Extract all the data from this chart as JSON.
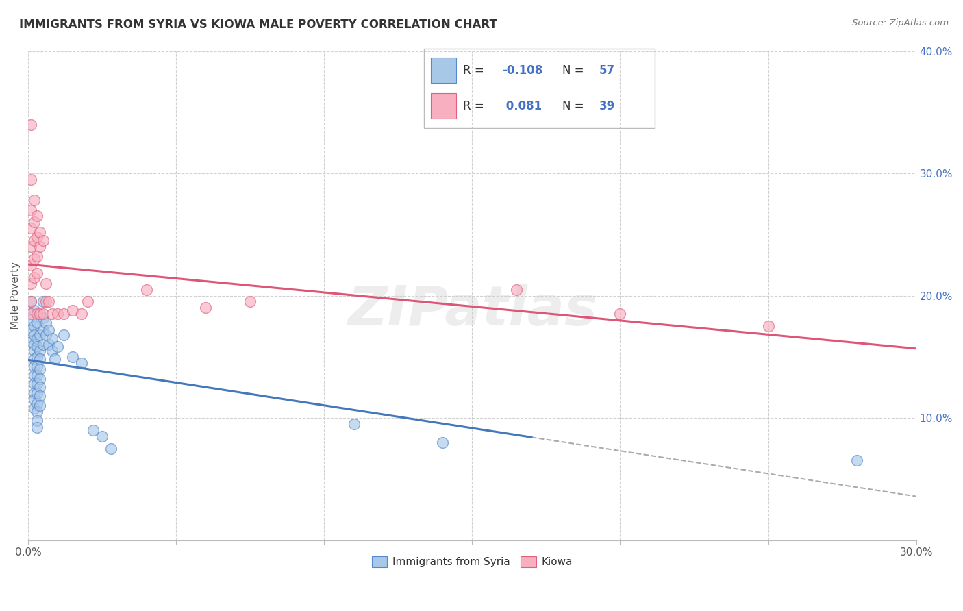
{
  "title": "IMMIGRANTS FROM SYRIA VS KIOWA MALE POVERTY CORRELATION CHART",
  "source": "Source: ZipAtlas.com",
  "ylabel": "Male Poverty",
  "xlim": [
    0,
    0.3
  ],
  "ylim": [
    0,
    0.4
  ],
  "legend_labels": [
    "Immigrants from Syria",
    "Kiowa"
  ],
  "legend_R_blue": "-0.108",
  "legend_R_pink": "0.081",
  "legend_N_blue": "57",
  "legend_N_pink": "39",
  "blue_fill": "#a8c8e8",
  "blue_edge": "#5588cc",
  "pink_fill": "#f8b0c0",
  "pink_edge": "#e06080",
  "blue_line": "#4477bb",
  "pink_line": "#dd5577",
  "dash_line": "#aaaaaa",
  "watermark": "ZIPatlas",
  "blue_scatter": [
    [
      0.001,
      0.195
    ],
    [
      0.001,
      0.18
    ],
    [
      0.001,
      0.172
    ],
    [
      0.001,
      0.162
    ],
    [
      0.002,
      0.188
    ],
    [
      0.002,
      0.175
    ],
    [
      0.002,
      0.168
    ],
    [
      0.002,
      0.16
    ],
    [
      0.002,
      0.155
    ],
    [
      0.002,
      0.148
    ],
    [
      0.002,
      0.142
    ],
    [
      0.002,
      0.135
    ],
    [
      0.002,
      0.128
    ],
    [
      0.002,
      0.12
    ],
    [
      0.002,
      0.115
    ],
    [
      0.002,
      0.108
    ],
    [
      0.003,
      0.178
    ],
    [
      0.003,
      0.165
    ],
    [
      0.003,
      0.158
    ],
    [
      0.003,
      0.15
    ],
    [
      0.003,
      0.142
    ],
    [
      0.003,
      0.135
    ],
    [
      0.003,
      0.128
    ],
    [
      0.003,
      0.12
    ],
    [
      0.003,
      0.112
    ],
    [
      0.003,
      0.105
    ],
    [
      0.003,
      0.098
    ],
    [
      0.003,
      0.092
    ],
    [
      0.004,
      0.168
    ],
    [
      0.004,
      0.155
    ],
    [
      0.004,
      0.148
    ],
    [
      0.004,
      0.14
    ],
    [
      0.004,
      0.132
    ],
    [
      0.004,
      0.125
    ],
    [
      0.004,
      0.118
    ],
    [
      0.004,
      0.11
    ],
    [
      0.005,
      0.195
    ],
    [
      0.005,
      0.182
    ],
    [
      0.005,
      0.172
    ],
    [
      0.005,
      0.16
    ],
    [
      0.006,
      0.178
    ],
    [
      0.006,
      0.168
    ],
    [
      0.007,
      0.172
    ],
    [
      0.007,
      0.16
    ],
    [
      0.008,
      0.165
    ],
    [
      0.008,
      0.155
    ],
    [
      0.009,
      0.148
    ],
    [
      0.01,
      0.158
    ],
    [
      0.012,
      0.168
    ],
    [
      0.015,
      0.15
    ],
    [
      0.018,
      0.145
    ],
    [
      0.022,
      0.09
    ],
    [
      0.025,
      0.085
    ],
    [
      0.028,
      0.075
    ],
    [
      0.11,
      0.095
    ],
    [
      0.14,
      0.08
    ],
    [
      0.28,
      0.065
    ]
  ],
  "pink_scatter": [
    [
      0.001,
      0.34
    ],
    [
      0.001,
      0.295
    ],
    [
      0.001,
      0.27
    ],
    [
      0.001,
      0.255
    ],
    [
      0.001,
      0.24
    ],
    [
      0.001,
      0.225
    ],
    [
      0.001,
      0.21
    ],
    [
      0.001,
      0.195
    ],
    [
      0.001,
      0.185
    ],
    [
      0.002,
      0.278
    ],
    [
      0.002,
      0.26
    ],
    [
      0.002,
      0.245
    ],
    [
      0.002,
      0.23
    ],
    [
      0.002,
      0.215
    ],
    [
      0.003,
      0.265
    ],
    [
      0.003,
      0.248
    ],
    [
      0.003,
      0.232
    ],
    [
      0.003,
      0.218
    ],
    [
      0.003,
      0.185
    ],
    [
      0.004,
      0.252
    ],
    [
      0.004,
      0.24
    ],
    [
      0.004,
      0.185
    ],
    [
      0.005,
      0.245
    ],
    [
      0.005,
      0.185
    ],
    [
      0.006,
      0.21
    ],
    [
      0.006,
      0.195
    ],
    [
      0.007,
      0.195
    ],
    [
      0.008,
      0.185
    ],
    [
      0.01,
      0.185
    ],
    [
      0.012,
      0.185
    ],
    [
      0.015,
      0.188
    ],
    [
      0.018,
      0.185
    ],
    [
      0.02,
      0.195
    ],
    [
      0.04,
      0.205
    ],
    [
      0.06,
      0.19
    ],
    [
      0.075,
      0.195
    ],
    [
      0.165,
      0.205
    ],
    [
      0.2,
      0.185
    ],
    [
      0.25,
      0.175
    ]
  ]
}
